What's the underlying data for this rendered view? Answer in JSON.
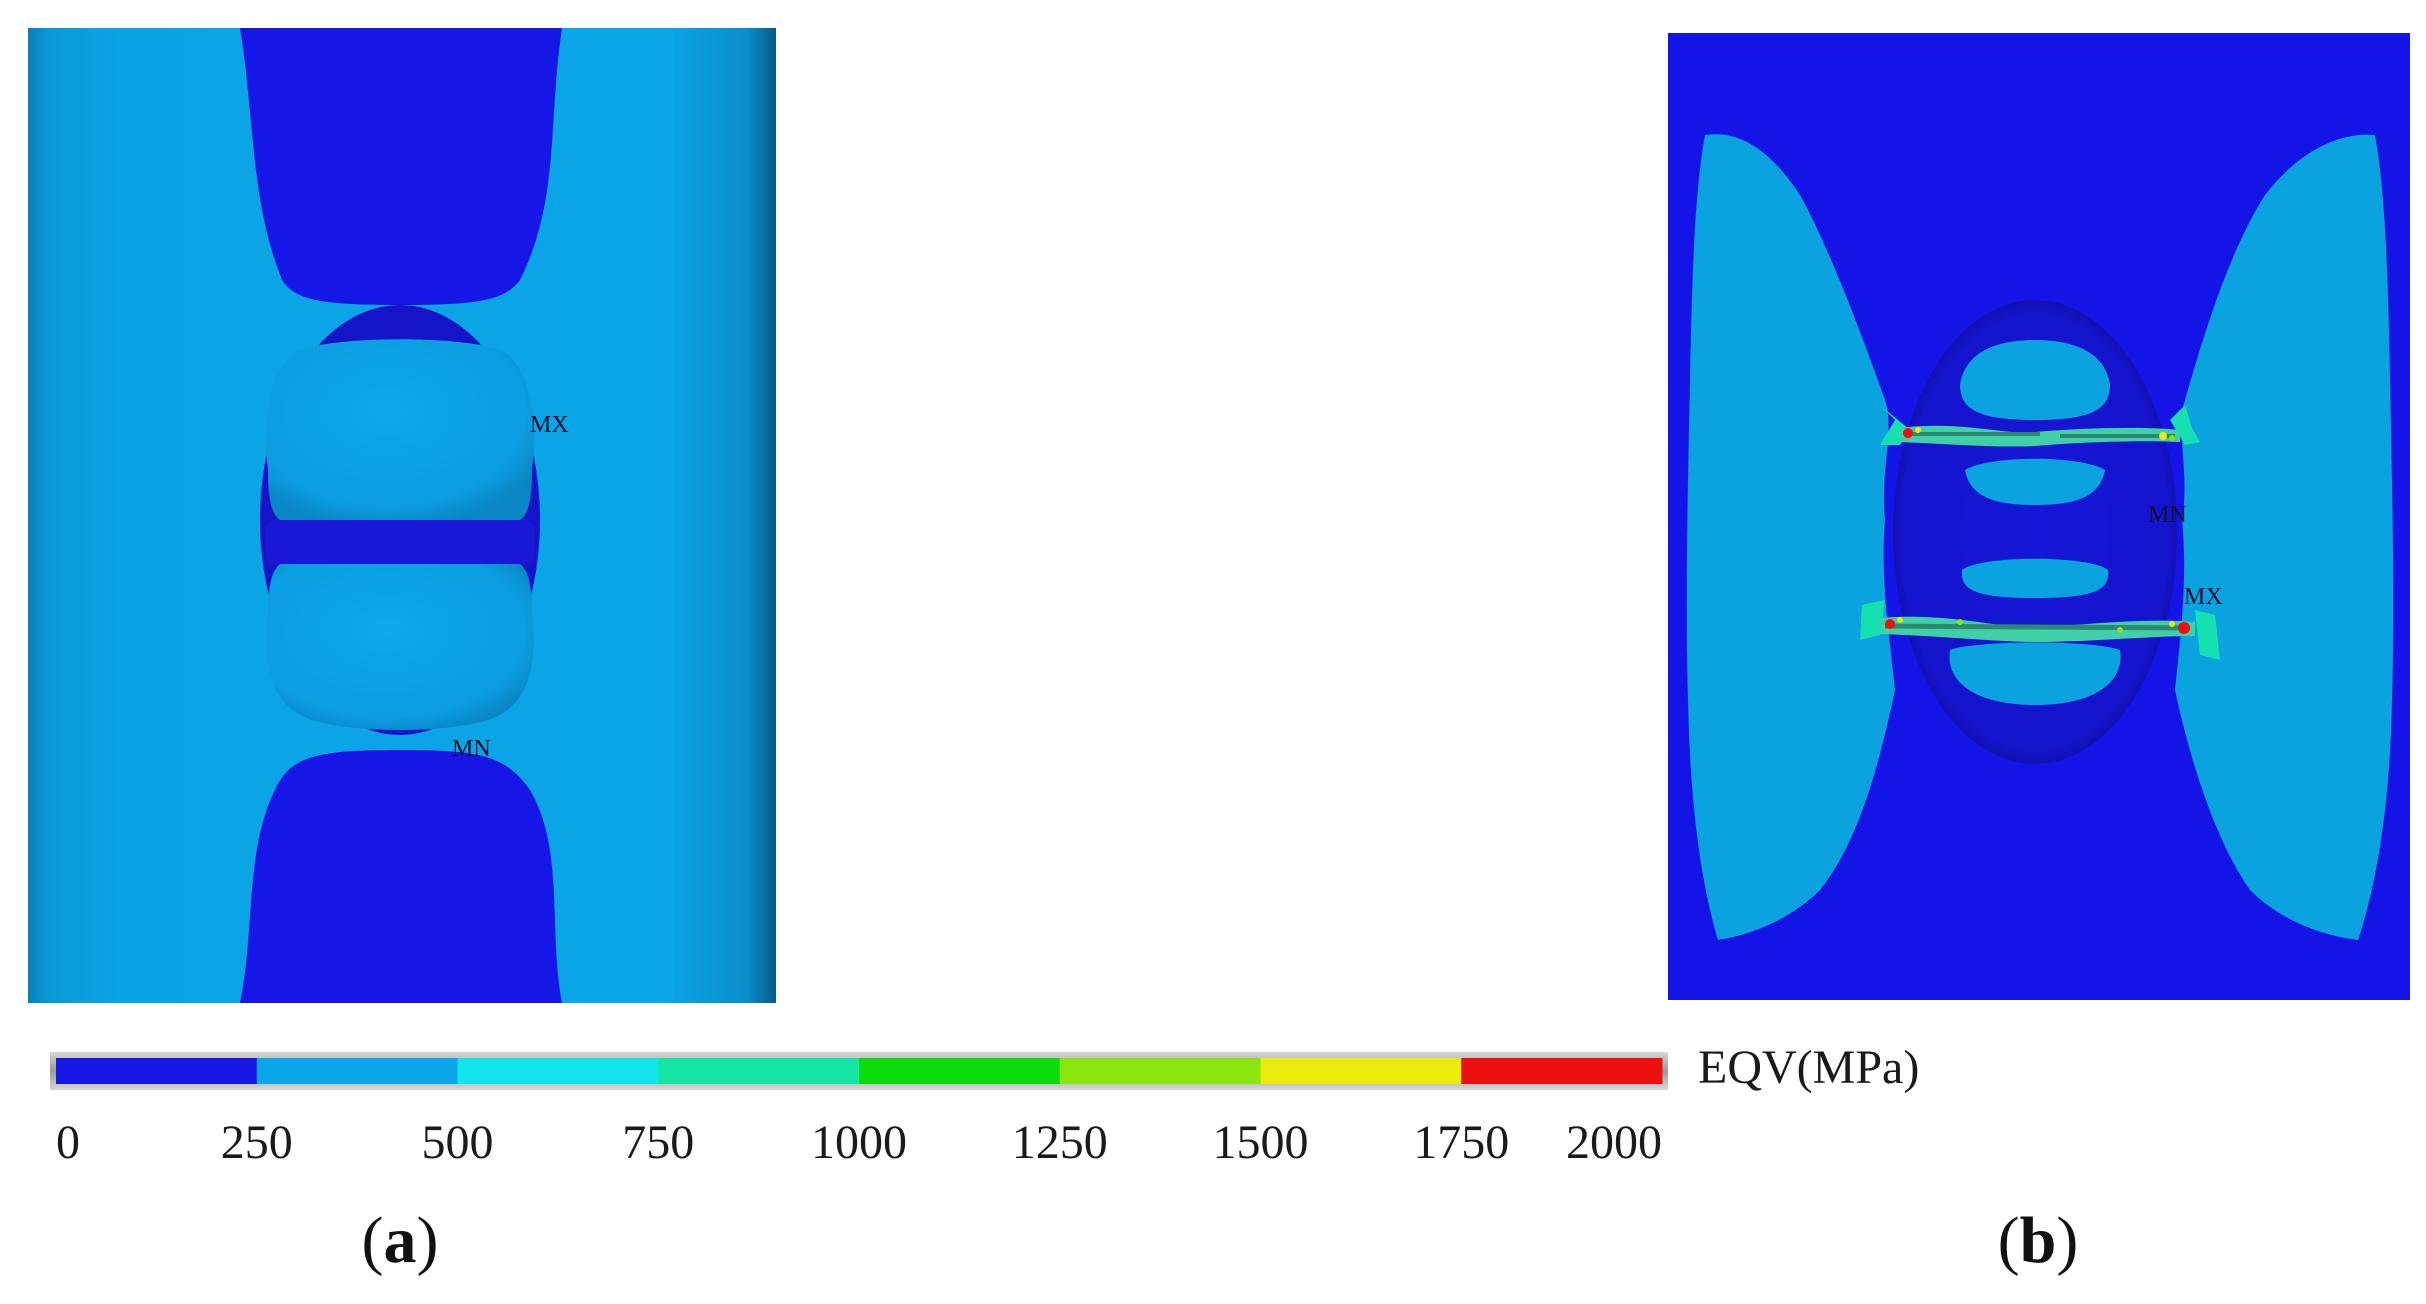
{
  "panels": {
    "a": {
      "caption_open": "(",
      "caption_letter": "a",
      "caption_close": ")",
      "max_marker": "MX",
      "min_marker": "MN"
    },
    "b": {
      "caption_open": "(",
      "caption_letter": "b",
      "caption_close": ")",
      "max_marker": "MX",
      "min_marker": "MN"
    }
  },
  "colorbar": {
    "title": "EQV(MPa)",
    "ticks": [
      "0",
      "250",
      "500",
      "750",
      "1000",
      "1250",
      "1500",
      "1750",
      "2000"
    ],
    "bands": [
      "#1515e6",
      "#0aa6ea",
      "#11e6ec",
      "#14e6a6",
      "#0cdc0c",
      "#8ae60d",
      "#ecec0c",
      "#ec1010"
    ]
  },
  "colors": {
    "low_stress": "#1515e0",
    "mid_stress": "#0ba2e6",
    "bg": "#ffffff"
  }
}
